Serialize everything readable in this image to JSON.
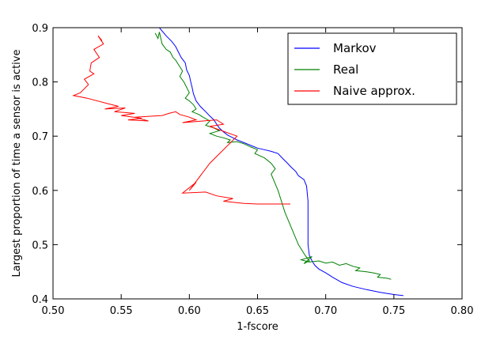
{
  "chart_data": {
    "type": "line",
    "title": "",
    "xlabel": "1-fscore",
    "ylabel": "Largest proportion of time a sensor is active",
    "xlim": [
      0.5,
      0.8
    ],
    "ylim": [
      0.4,
      0.9
    ],
    "xticks": [
      "0.50",
      "0.55",
      "0.60",
      "0.65",
      "0.70",
      "0.75",
      "0.80"
    ],
    "yticks": [
      "0.4",
      "0.5",
      "0.6",
      "0.7",
      "0.8",
      "0.9"
    ],
    "legend_position": "top-right",
    "series": [
      {
        "name": "Markov",
        "color": "#0000ff",
        "x": [
          0.578,
          0.583,
          0.587,
          0.59,
          0.592,
          0.594,
          0.597,
          0.598,
          0.6,
          0.601,
          0.602,
          0.603,
          0.605,
          0.608,
          0.612,
          0.615,
          0.618,
          0.62,
          0.622,
          0.625,
          0.628,
          0.632,
          0.635,
          0.64,
          0.645,
          0.65,
          0.655,
          0.66,
          0.665,
          0.668,
          0.672,
          0.675,
          0.678,
          0.68,
          0.684,
          0.686,
          0.687,
          0.687,
          0.687,
          0.688,
          0.69,
          0.692,
          0.695,
          0.7,
          0.705,
          0.712,
          0.72,
          0.73,
          0.74,
          0.75,
          0.757
        ],
        "y": [
          0.9,
          0.885,
          0.875,
          0.865,
          0.855,
          0.845,
          0.835,
          0.822,
          0.812,
          0.8,
          0.79,
          0.778,
          0.765,
          0.755,
          0.745,
          0.737,
          0.73,
          0.722,
          0.715,
          0.708,
          0.702,
          0.697,
          0.693,
          0.688,
          0.683,
          0.678,
          0.675,
          0.672,
          0.668,
          0.66,
          0.65,
          0.642,
          0.635,
          0.627,
          0.62,
          0.608,
          0.58,
          0.54,
          0.5,
          0.48,
          0.47,
          0.462,
          0.455,
          0.448,
          0.44,
          0.43,
          0.423,
          0.417,
          0.412,
          0.408,
          0.406
        ]
      },
      {
        "name": "Real",
        "color": "#007f00",
        "x": [
          0.575,
          0.577,
          0.578,
          0.58,
          0.583,
          0.586,
          0.588,
          0.59,
          0.592,
          0.595,
          0.593,
          0.596,
          0.598,
          0.6,
          0.597,
          0.6,
          0.603,
          0.605,
          0.602,
          0.607,
          0.61,
          0.615,
          0.612,
          0.618,
          0.622,
          0.615,
          0.62,
          0.625,
          0.63,
          0.628,
          0.635,
          0.64,
          0.645,
          0.65,
          0.648,
          0.655,
          0.66,
          0.663,
          0.66,
          0.665,
          0.67,
          0.675,
          0.68,
          0.685,
          0.688,
          0.684,
          0.69,
          0.682,
          0.688,
          0.695,
          0.7,
          0.705,
          0.71,
          0.715,
          0.72,
          0.725,
          0.722,
          0.73,
          0.735,
          0.74,
          0.738,
          0.745,
          0.748
        ],
        "y": [
          0.89,
          0.88,
          0.892,
          0.87,
          0.86,
          0.855,
          0.845,
          0.84,
          0.832,
          0.82,
          0.81,
          0.8,
          0.79,
          0.78,
          0.77,
          0.765,
          0.758,
          0.75,
          0.745,
          0.74,
          0.735,
          0.728,
          0.72,
          0.715,
          0.71,
          0.705,
          0.7,
          0.697,
          0.693,
          0.688,
          0.69,
          0.686,
          0.68,
          0.675,
          0.668,
          0.66,
          0.65,
          0.64,
          0.63,
          0.6,
          0.56,
          0.53,
          0.5,
          0.48,
          0.47,
          0.465,
          0.478,
          0.472,
          0.468,
          0.47,
          0.466,
          0.468,
          0.462,
          0.465,
          0.46,
          0.457,
          0.452,
          0.45,
          0.448,
          0.445,
          0.44,
          0.438,
          0.436
        ]
      },
      {
        "name": "Naive approx.",
        "color": "#ff0000",
        "x": [
          0.536,
          0.533,
          0.537,
          0.53,
          0.534,
          0.528,
          0.527,
          0.53,
          0.523,
          0.526,
          0.52,
          0.515,
          0.525,
          0.54,
          0.548,
          0.538,
          0.553,
          0.545,
          0.56,
          0.55,
          0.565,
          0.555,
          0.57,
          0.56,
          0.58,
          0.585,
          0.59,
          0.593,
          0.6,
          0.605,
          0.595,
          0.61,
          0.62,
          0.625,
          0.615,
          0.635,
          0.615,
          0.6,
          0.605,
          0.595,
          0.612,
          0.62,
          0.632,
          0.625,
          0.64,
          0.65,
          0.66,
          0.674
        ],
        "y": [
          0.876,
          0.885,
          0.87,
          0.86,
          0.845,
          0.835,
          0.82,
          0.815,
          0.805,
          0.795,
          0.78,
          0.775,
          0.77,
          0.76,
          0.755,
          0.75,
          0.752,
          0.745,
          0.742,
          0.738,
          0.733,
          0.73,
          0.728,
          0.735,
          0.738,
          0.742,
          0.745,
          0.74,
          0.735,
          0.73,
          0.725,
          0.728,
          0.73,
          0.722,
          0.718,
          0.7,
          0.65,
          0.6,
          0.615,
          0.595,
          0.597,
          0.59,
          0.585,
          0.58,
          0.576,
          0.575,
          0.575,
          0.575
        ]
      }
    ]
  }
}
